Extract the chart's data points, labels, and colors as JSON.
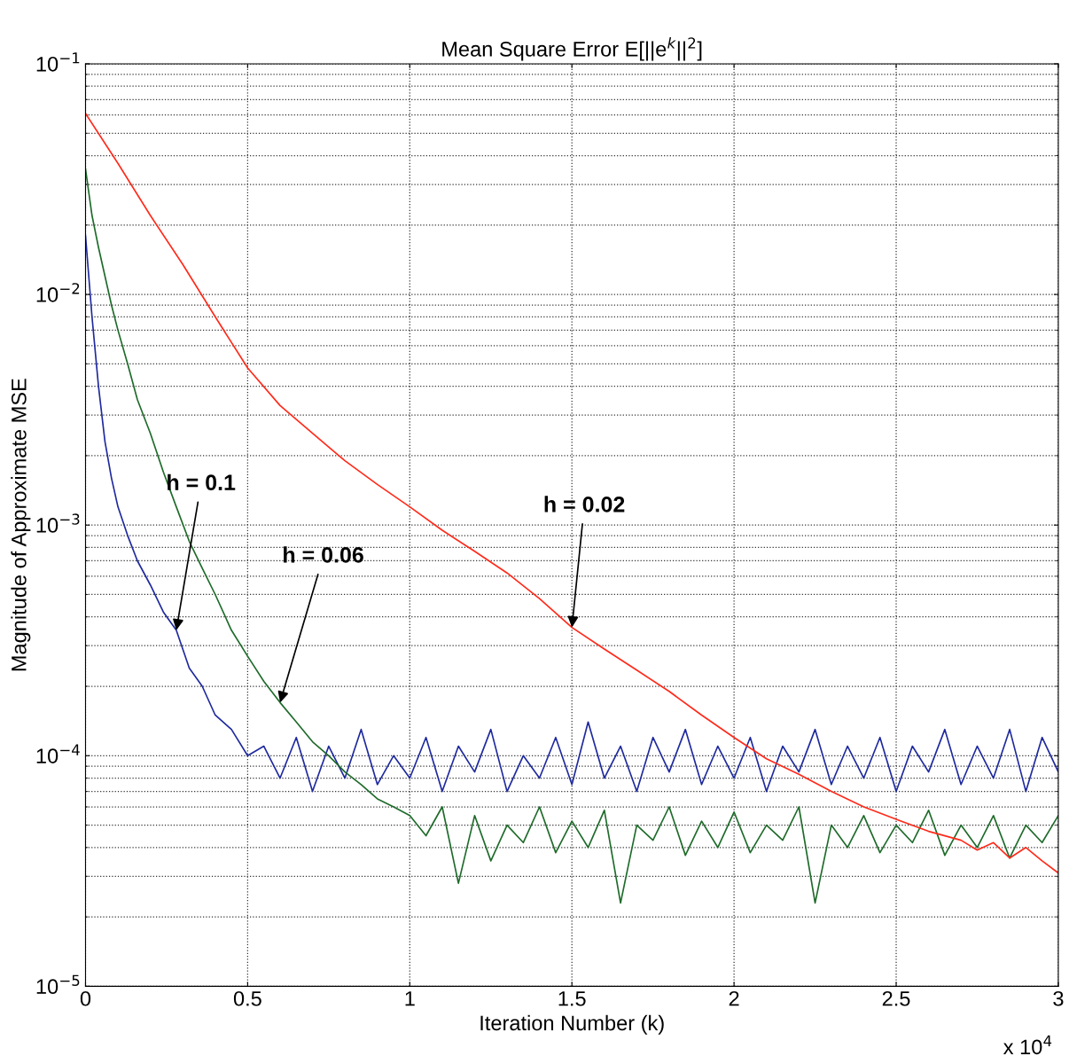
{
  "chart_data": {
    "type": "line",
    "title": "Mean Square Error E[||e$^{k}$||$^{2}$]",
    "xlabel": "Iteration Number (k)",
    "ylabel": "Magnitude of Approximate MSE",
    "log": "y",
    "grid": true,
    "marker": "none",
    "line_style": "solid",
    "xlim": [
      0,
      3
    ],
    "xticks": [
      0,
      0.5,
      1,
      1.5,
      2,
      2.5,
      3
    ],
    "ylim": [
      1e-05,
      0.1
    ],
    "yticks": [
      {
        "value": 1e-05,
        "label": "10$^{−5}$"
      },
      {
        "value": 0.0001,
        "label": "10$^{−4}$"
      },
      {
        "value": 0.001,
        "label": "10$^{−3}$"
      },
      {
        "value": 0.01,
        "label": "10$^{−2}$"
      },
      {
        "value": 0.1,
        "label": "10$^{−1}$"
      }
    ],
    "series": [
      {
        "color": "#1f2a9e",
        "x": [
          0,
          0.02,
          0.04,
          0.06,
          0.08,
          0.1,
          0.13,
          0.16,
          0.2,
          0.24,
          0.28,
          0.32,
          0.36,
          0.4,
          0.45,
          0.5,
          0.55,
          0.6,
          0.65,
          0.7,
          0.75,
          0.8,
          0.85,
          0.9,
          0.95,
          1,
          1.05,
          1.1,
          1.15,
          1.2,
          1.25,
          1.3,
          1.35,
          1.4,
          1.45,
          1.5,
          1.55,
          1.6,
          1.65,
          1.7,
          1.75,
          1.8,
          1.85,
          1.9,
          1.95,
          2,
          2.05,
          2.1,
          2.15,
          2.2,
          2.25,
          2.3,
          2.35,
          2.4,
          2.45,
          2.5,
          2.55,
          2.6,
          2.65,
          2.7,
          2.75,
          2.8,
          2.85,
          2.9,
          2.95,
          3
        ],
        "values": [
          0.018,
          0.008,
          0.004,
          0.0023,
          0.0016,
          0.0012,
          0.0009,
          0.0007,
          0.00055,
          0.00042,
          0.00035,
          0.00024,
          0.0002,
          0.00015,
          0.00013,
          0.0001,
          0.00011,
          8e-05,
          0.00012,
          7e-05,
          0.00011,
          8e-05,
          0.00013,
          7.5e-05,
          0.0001,
          8e-05,
          0.00012,
          7e-05,
          0.00011,
          8.5e-05,
          0.00013,
          7e-05,
          0.0001,
          8e-05,
          0.00012,
          7.5e-05,
          0.00014,
          8e-05,
          0.00011,
          7e-05,
          0.00012,
          8.5e-05,
          0.00013,
          7.5e-05,
          0.00011,
          8e-05,
          0.00012,
          7e-05,
          0.00011,
          8.5e-05,
          0.00013,
          7.5e-05,
          0.00011,
          8e-05,
          0.00012,
          7e-05,
          0.00011,
          8.5e-05,
          0.00013,
          7.5e-05,
          0.00011,
          8e-05,
          0.00013,
          7e-05,
          0.00012,
          8.5e-05
        ]
      },
      {
        "color": "#1e6b2a",
        "x": [
          0,
          0.02,
          0.04,
          0.06,
          0.08,
          0.1,
          0.13,
          0.16,
          0.2,
          0.24,
          0.28,
          0.32,
          0.36,
          0.4,
          0.45,
          0.5,
          0.55,
          0.6,
          0.65,
          0.7,
          0.75,
          0.8,
          0.85,
          0.9,
          0.95,
          1,
          1.05,
          1.1,
          1.15,
          1.2,
          1.25,
          1.3,
          1.35,
          1.4,
          1.45,
          1.5,
          1.55,
          1.6,
          1.65,
          1.7,
          1.75,
          1.8,
          1.85,
          1.9,
          1.95,
          2,
          2.05,
          2.1,
          2.15,
          2.2,
          2.25,
          2.3,
          2.35,
          2.4,
          2.45,
          2.5,
          2.55,
          2.6,
          2.65,
          2.7,
          2.75,
          2.8,
          2.85,
          2.9,
          2.95,
          3
        ],
        "values": [
          0.035,
          0.022,
          0.016,
          0.012,
          0.009,
          0.007,
          0.005,
          0.0035,
          0.0025,
          0.0017,
          0.0012,
          0.00085,
          0.00065,
          0.0005,
          0.00035,
          0.00027,
          0.00021,
          0.00017,
          0.00014,
          0.000115,
          0.0001,
          8.5e-05,
          7.5e-05,
          6.5e-05,
          6e-05,
          5.5e-05,
          4.5e-05,
          6e-05,
          2.8e-05,
          5.5e-05,
          3.5e-05,
          5e-05,
          4.2e-05,
          6e-05,
          3.8e-05,
          5.2e-05,
          4e-05,
          5.8e-05,
          2.3e-05,
          5e-05,
          4.3e-05,
          6e-05,
          3.7e-05,
          5.2e-05,
          4e-05,
          5.7e-05,
          3.8e-05,
          5e-05,
          4.3e-05,
          6e-05,
          2.3e-05,
          5e-05,
          4e-05,
          5.5e-05,
          3.8e-05,
          5e-05,
          4.2e-05,
          5.8e-05,
          3.7e-05,
          5e-05,
          4e-05,
          5.5e-05,
          3.6e-05,
          5e-05,
          4.2e-05,
          5.5e-05
        ]
      },
      {
        "color": "#ff2a1a",
        "x": [
          0,
          0.1,
          0.2,
          0.3,
          0.4,
          0.5,
          0.6,
          0.7,
          0.8,
          0.9,
          1,
          1.1,
          1.2,
          1.3,
          1.4,
          1.5,
          1.6,
          1.7,
          1.8,
          1.9,
          2,
          2.1,
          2.2,
          2.3,
          2.4,
          2.5,
          2.6,
          2.7,
          2.75,
          2.8,
          2.85,
          2.9,
          2.95,
          3
        ],
        "values": [
          0.061,
          0.037,
          0.022,
          0.0135,
          0.008,
          0.0048,
          0.0033,
          0.0025,
          0.0019,
          0.0015,
          0.0012,
          0.00095,
          0.00077,
          0.00062,
          0.00048,
          0.00036,
          0.00029,
          0.000235,
          0.00019,
          0.00015,
          0.00012,
          9.7e-05,
          8.3e-05,
          7e-05,
          6e-05,
          5.3e-05,
          4.7e-05,
          4.3e-05,
          3.9e-05,
          4.2e-05,
          3.6e-05,
          4e-05,
          3.5e-05,
          3.1e-05
        ]
      }
    ],
    "annotations": [
      {
        "text": "h = 0.1",
        "x": 0.28,
        "y": 0.00035
      },
      {
        "text": "h = 0.06",
        "x": 0.6,
        "y": 0.00017
      },
      {
        "text": "h = 0.02",
        "x": 1.5,
        "y": 0.00036
      },
      "x 10$^{4}$"
    ]
  }
}
